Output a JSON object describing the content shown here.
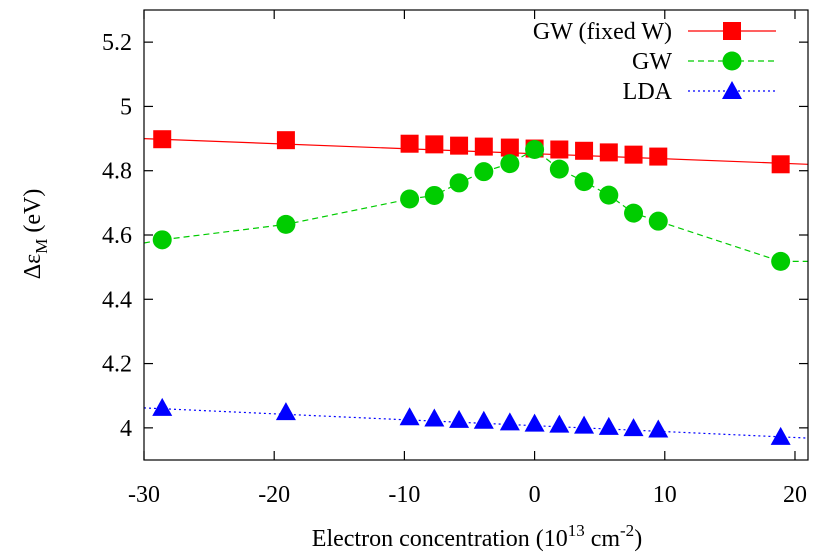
{
  "chart_data": {
    "type": "line",
    "title": "",
    "xlabel": {
      "main": "Electron concentration (10",
      "sup1": "13",
      "mid": " cm",
      "sup2": "-2",
      "end": ")"
    },
    "ylabel": {
      "main": "Δε",
      "sub": "M",
      "end": " (eV)"
    },
    "xlim": [
      -30,
      21
    ],
    "ylim": [
      3.9,
      5.3
    ],
    "xticks": [
      -30,
      -20,
      -10,
      0,
      10,
      20
    ],
    "xtick_labels": [
      "-30",
      "-20",
      "-10",
      "0",
      "10",
      "20"
    ],
    "yticks": [
      4,
      4.2,
      4.4,
      4.6,
      4.8,
      5,
      5.2
    ],
    "ytick_labels": [
      "4",
      "4.2",
      "4.4",
      "4.6",
      "4.8",
      "5",
      "5.2"
    ],
    "grid": false,
    "legend_position": "top-right",
    "series": [
      {
        "name": "GW (fixed W)",
        "color": "#ff0000",
        "marker": "square",
        "line_style": "solid",
        "points": [
          [
            -28.6,
            4.898
          ],
          [
            -19.1,
            4.895
          ],
          [
            -9.6,
            4.884
          ],
          [
            -7.7,
            4.882
          ],
          [
            -5.8,
            4.878
          ],
          [
            -3.9,
            4.875
          ],
          [
            -1.9,
            4.872
          ],
          [
            0,
            4.869
          ],
          [
            1.9,
            4.866
          ],
          [
            3.8,
            4.862
          ],
          [
            5.7,
            4.857
          ],
          [
            7.6,
            4.85
          ],
          [
            9.5,
            4.844
          ],
          [
            18.9,
            4.82
          ]
        ],
        "line": [
          [
            -30,
            4.9
          ],
          [
            21,
            4.82
          ]
        ]
      },
      {
        "name": "GW",
        "color": "#00cc00",
        "marker": "circle",
        "line_style": "dashed",
        "points": [
          [
            -28.6,
            4.585
          ],
          [
            -19.1,
            4.633
          ],
          [
            -9.6,
            4.712
          ],
          [
            -7.7,
            4.723
          ],
          [
            -5.8,
            4.762
          ],
          [
            -3.9,
            4.797
          ],
          [
            -1.9,
            4.822
          ],
          [
            0,
            4.866
          ],
          [
            1.9,
            4.805
          ],
          [
            3.8,
            4.766
          ],
          [
            5.7,
            4.724
          ],
          [
            7.6,
            4.668
          ],
          [
            9.5,
            4.643
          ],
          [
            18.9,
            4.518
          ]
        ],
        "line": [
          [
            -30,
            4.575
          ],
          [
            -28.6,
            4.585
          ],
          [
            -19.1,
            4.633
          ],
          [
            -9.6,
            4.712
          ],
          [
            -7.7,
            4.723
          ],
          [
            -5.8,
            4.762
          ],
          [
            -3.9,
            4.797
          ],
          [
            -1.9,
            4.822
          ],
          [
            0,
            4.866
          ],
          [
            1.9,
            4.805
          ],
          [
            3.8,
            4.766
          ],
          [
            5.7,
            4.724
          ],
          [
            7.6,
            4.668
          ],
          [
            9.5,
            4.643
          ],
          [
            18.9,
            4.518
          ],
          [
            21,
            4.518
          ]
        ]
      },
      {
        "name": "LDA",
        "color": "#0000ff",
        "marker": "triangle",
        "line_style": "dotted",
        "points": [
          [
            -28.6,
            4.062
          ],
          [
            -19.1,
            4.049
          ],
          [
            -9.6,
            4.033
          ],
          [
            -7.7,
            4.029
          ],
          [
            -5.8,
            4.025
          ],
          [
            -3.9,
            4.022
          ],
          [
            -1.9,
            4.017
          ],
          [
            0,
            4.013
          ],
          [
            1.9,
            4.01
          ],
          [
            3.8,
            4.007
          ],
          [
            5.7,
            4.003
          ],
          [
            7.6,
            3.999
          ],
          [
            9.5,
            3.995
          ],
          [
            18.9,
            3.972
          ]
        ],
        "line": [
          [
            -30,
            4.062
          ],
          [
            21,
            3.968
          ]
        ]
      }
    ]
  }
}
